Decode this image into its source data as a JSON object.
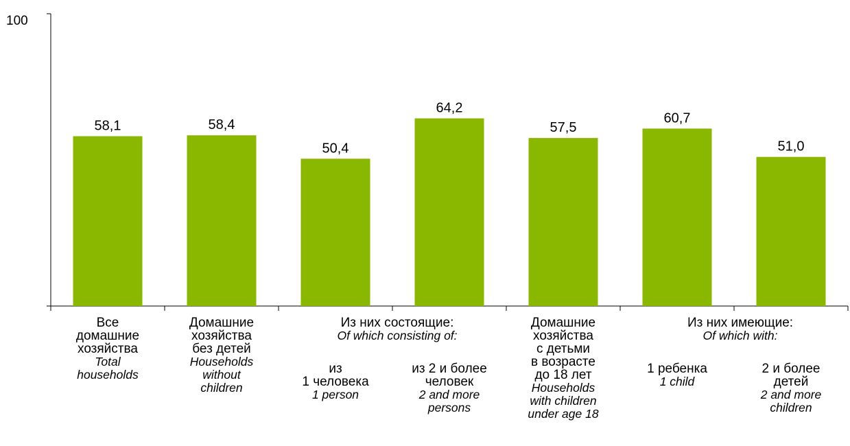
{
  "chart_data": {
    "type": "bar",
    "title": "",
    "xlabel": "",
    "ylabel": "",
    "ylim": [
      0,
      100
    ],
    "yticks": [
      "100"
    ],
    "grid": false,
    "bar_color": "#8ab800",
    "values": [
      58.1,
      58.4,
      50.4,
      64.2,
      57.5,
      60.7,
      51.0
    ],
    "value_labels": [
      "58,1",
      "58,4",
      "50,4",
      "64,2",
      "57,5",
      "60,7",
      "51,0"
    ],
    "categories": [
      {
        "ru": [
          "Все",
          "домашние",
          "хозяйства"
        ],
        "en": [
          "Total",
          "households"
        ]
      },
      {
        "ru": [
          "Домашние",
          "хозяйства",
          "без детей"
        ],
        "en": [
          "Households",
          "without",
          "children"
        ]
      },
      {
        "ru": [
          "из",
          "1 человека"
        ],
        "en": [
          "1 person"
        ]
      },
      {
        "ru": [
          "из 2 и более",
          "человек"
        ],
        "en": [
          "2 and more",
          "persons"
        ]
      },
      {
        "ru": [
          "Домашние",
          "хозяйства",
          "с детьми",
          "в возрасте",
          "до 18 лет"
        ],
        "en": [
          "Households",
          "with children",
          "under age 18"
        ]
      },
      {
        "ru": [
          "1 ребенка"
        ],
        "en": [
          "1 child"
        ]
      },
      {
        "ru": [
          "2 и более",
          "детей"
        ],
        "en": [
          "2 and more",
          "children"
        ]
      }
    ],
    "groups": [
      {
        "ru": "Из них состоящие:",
        "en": "Of which consisting of:"
      },
      {
        "ru": "Из них имеющие:",
        "en": "Of which with:"
      }
    ]
  }
}
